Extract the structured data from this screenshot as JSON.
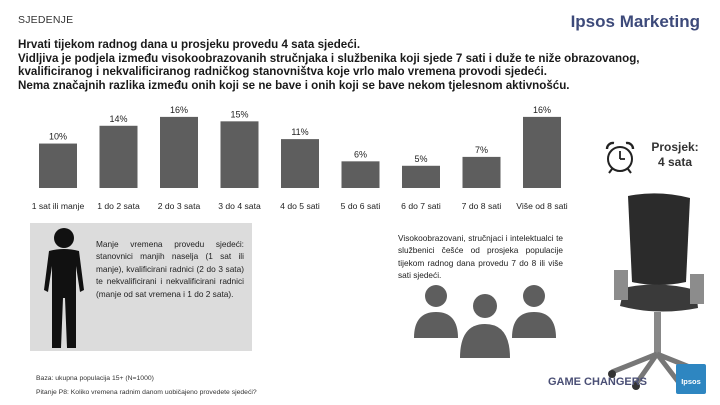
{
  "header": {
    "section": "SJEDENJE",
    "brand": "Ipsos Marketing",
    "headline_1": "Hrvati tijekom radnog dana u prosjeku provedu 4 sata sjedeći.",
    "headline_2": "Vidljiva je podjela između visokoobrazovanih stručnjaka i službenika koji sjede 7 sati i duže te niže obrazovanog,",
    "headline_3": "kvalificiranog i nekvalificiranog radničkog stanovništva koje vrlo malo vremena provodi sjedeći.",
    "headline_4": "Nema značajnih razlika između onih koji se ne bave i onih koji se bave nekom tjelesnom aktivnošću."
  },
  "chart_data": {
    "type": "bar",
    "categories": [
      "1 sat ili manje",
      "1 do 2 sata",
      "2 do 3 sata",
      "3 do 4 sata",
      "4 do 5 sati",
      "5 do 6 sati",
      "6 do 7 sati",
      "7 do 8 sati",
      "Više od 8 sati"
    ],
    "values": [
      10,
      14,
      16,
      15,
      11,
      6,
      5,
      7,
      16
    ],
    "value_labels": [
      "10%",
      "14%",
      "16%",
      "15%",
      "11%",
      "6%",
      "5%",
      "7%",
      "16%"
    ],
    "unit": "%",
    "ylim": [
      0,
      18
    ],
    "grid": false,
    "bar_color": "#5e5e5e"
  },
  "average": {
    "label": "Prosjek:",
    "value": "4 sata",
    "icon": "alarm-clock-icon"
  },
  "left_box": {
    "text": "Manje vremena provedu sjedeći: stanovnici manjih naselja (1 sat ili manje), kvalificirani radnici (2 do 3 sata) te nekvalificirani i nekvalificirani radnici (manje od sat vremena i 1 do 2 sata).",
    "icon": "person-silhouette-icon"
  },
  "right_box": {
    "text": "Visokoobrazovani, stručnjaci i intelektualci te službenici češće od prosjeka populacije tijekom radnog dana provedu 7 do 8 ili više sati sjedeći.",
    "icon": "group-of-people-icon"
  },
  "footer": {
    "base": "Baza: ukupna populacija 15+ (N=1000)",
    "question": "Pitanje P8: Koliko vremena radnim danom uobičajeno provedete sjedeći?",
    "tagline": "GAME CHANGERS",
    "logo": "Ipsos",
    "accent": "#2e86c1"
  }
}
